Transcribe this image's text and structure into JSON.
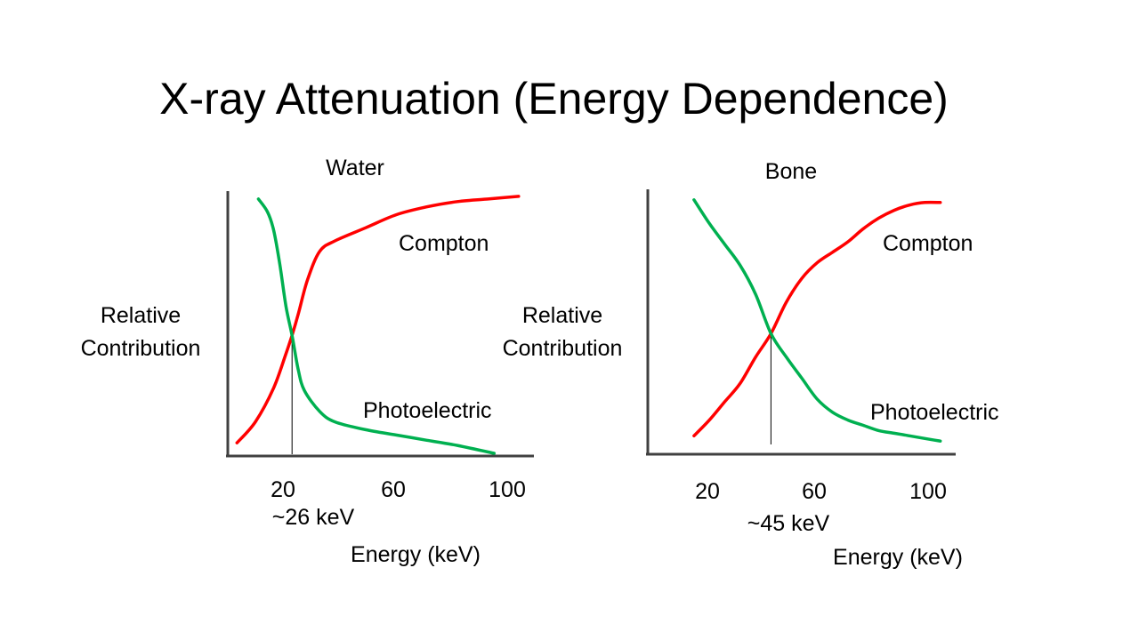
{
  "slide": {
    "title": "X-ray Attenuation (Energy Dependence)"
  },
  "colors": {
    "compton": "#ff0000",
    "photoelectric": "#00b050",
    "axis": "#404040"
  },
  "chart_data": [
    {
      "type": "line",
      "title": "Water",
      "xlabel": "Energy (keV)",
      "ylabel": "Relative Contribution",
      "xticks": [
        "20",
        "60",
        "100"
      ],
      "xlim": [
        5,
        105
      ],
      "ylim": [
        0,
        1
      ],
      "grid": false,
      "crossover": {
        "x": 26,
        "label": "~26 keV"
      },
      "series": [
        {
          "name": "Compton",
          "color": "#ff0000",
          "x": [
            8,
            14,
            20,
            24,
            26,
            28,
            31,
            35,
            40,
            50,
            60,
            70,
            80,
            90,
            100
          ],
          "y": [
            0.04,
            0.12,
            0.25,
            0.38,
            0.45,
            0.53,
            0.66,
            0.77,
            0.81,
            0.86,
            0.91,
            0.94,
            0.96,
            0.97,
            0.98
          ]
        },
        {
          "name": "Photoelectric",
          "color": "#00b050",
          "x": [
            15,
            18,
            20,
            22,
            24,
            26,
            28,
            30,
            35,
            40,
            50,
            60,
            70,
            80,
            92
          ],
          "y": [
            0.97,
            0.92,
            0.85,
            0.72,
            0.56,
            0.45,
            0.32,
            0.24,
            0.16,
            0.12,
            0.09,
            0.07,
            0.05,
            0.03,
            0.0
          ]
        }
      ]
    },
    {
      "type": "line",
      "title": "Bone",
      "xlabel": "Energy (keV)",
      "ylabel": "Relative Contribution",
      "xticks": [
        "20",
        "60",
        "100"
      ],
      "xlim": [
        5,
        105
      ],
      "ylim": [
        0,
        1
      ],
      "grid": false,
      "crossover": {
        "x": 45,
        "label": "~45 keV"
      },
      "series": [
        {
          "name": "Compton",
          "color": "#ff0000",
          "x": [
            20,
            25,
            30,
            35,
            40,
            45,
            50,
            55,
            60,
            65,
            70,
            75,
            80,
            85,
            90,
            95,
            100
          ],
          "y": [
            0.06,
            0.12,
            0.19,
            0.26,
            0.36,
            0.45,
            0.57,
            0.66,
            0.72,
            0.76,
            0.8,
            0.85,
            0.89,
            0.92,
            0.94,
            0.95,
            0.95
          ]
        },
        {
          "name": "Photoelectric",
          "color": "#00b050",
          "x": [
            20,
            25,
            30,
            35,
            40,
            45,
            50,
            55,
            60,
            65,
            70,
            75,
            80,
            85,
            90,
            95,
            100
          ],
          "y": [
            0.96,
            0.87,
            0.79,
            0.71,
            0.6,
            0.45,
            0.36,
            0.28,
            0.2,
            0.15,
            0.12,
            0.1,
            0.08,
            0.07,
            0.06,
            0.05,
            0.04
          ]
        }
      ]
    }
  ]
}
